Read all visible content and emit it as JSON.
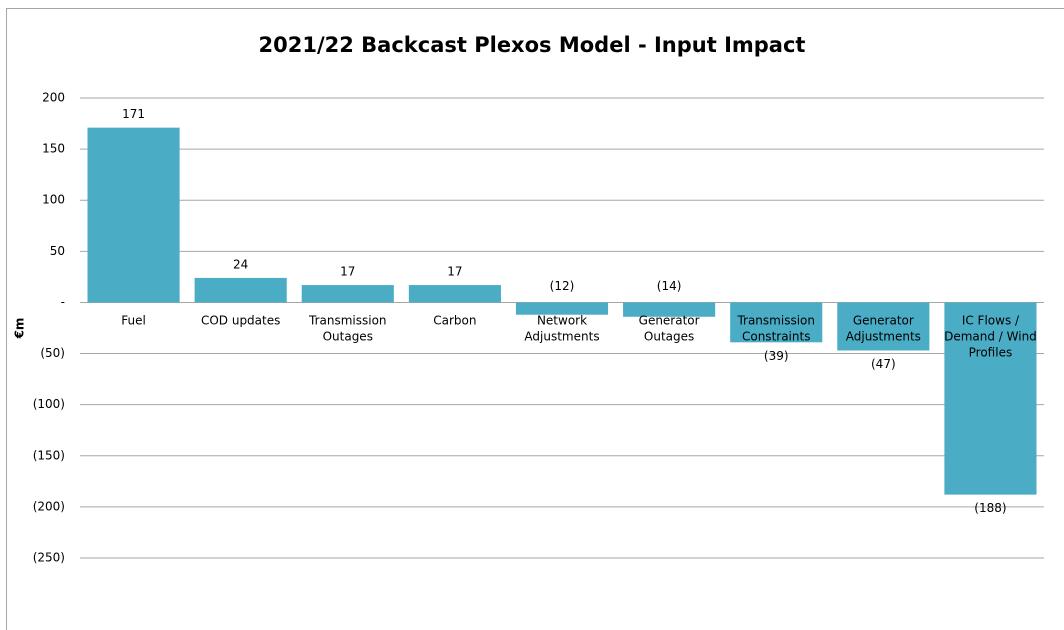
{
  "chart_data": {
    "type": "bar",
    "title": "2021/22 Backcast Plexos Model - Input Impact",
    "y_label": "€m",
    "categories": [
      "Fuel",
      "COD updates",
      "Transmission Outages",
      "Carbon",
      "Network Adjustments",
      "Generator Outages",
      "Transmission Constraints",
      "Generator Adjustments",
      "IC Flows / Demand / Wind Profiles"
    ],
    "values": [
      171,
      24,
      17,
      17,
      -12,
      -14,
      -39,
      -47,
      -188
    ],
    "value_labels": [
      "171",
      "24",
      "17",
      "17",
      "(12)",
      "(14)",
      "(39)",
      "(47)",
      "(188)"
    ],
    "color": "#4bacc6",
    "ylim": [
      -250,
      200
    ],
    "yticks": [
      200,
      150,
      100,
      50,
      {
        "value": 0,
        "label": "-"
      },
      {
        "value": -50,
        "label": "(50)"
      },
      {
        "value": -100,
        "label": "(100)"
      },
      {
        "value": -150,
        "label": "(150)"
      },
      {
        "value": -200,
        "label": "(200)"
      },
      {
        "value": -250,
        "label": "(250)"
      }
    ],
    "grid": true
  }
}
